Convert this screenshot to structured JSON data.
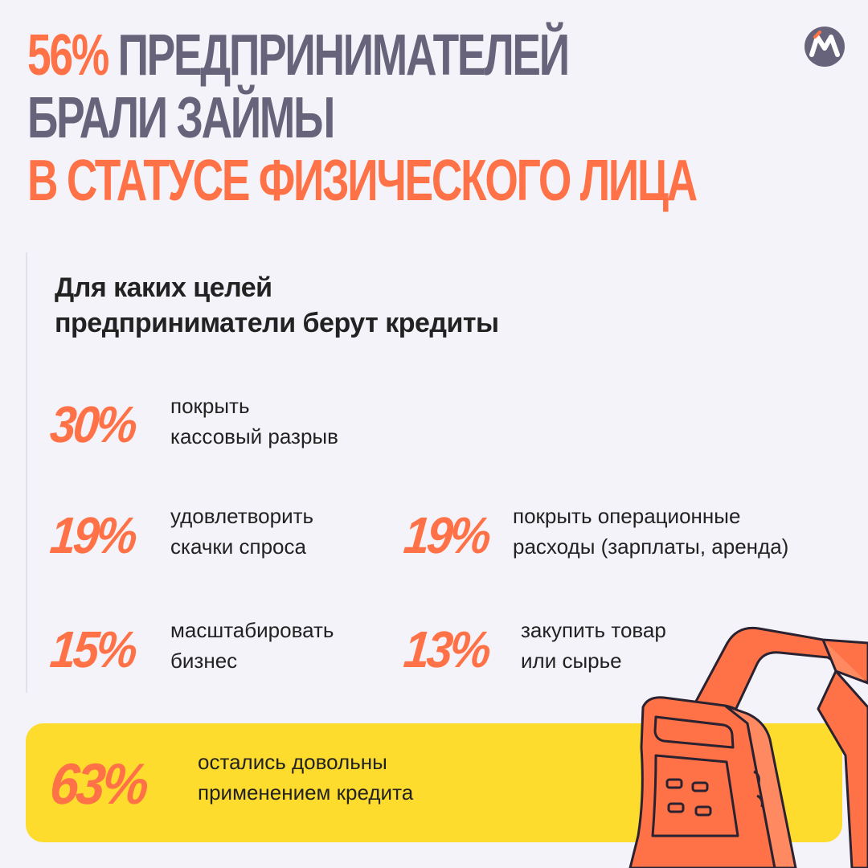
{
  "headline": {
    "line1_highlight": "56%",
    "line1_rest": " ПРЕДПРИНИМАТЕЛЕЙ",
    "line2": "БРАЛИ ЗАЙМЫ",
    "line3": "В СТАТУСЕ ФИЗИЧЕСКОГО ЛИЦА"
  },
  "logo": {
    "icon": "brand-m-icon"
  },
  "subtitle": {
    "line1": "Для каких целей",
    "line2": "предприниматели берут кредиты"
  },
  "stats": [
    {
      "value": "30%",
      "line1": "покрыть",
      "line2": "кассовый разрыв"
    },
    {
      "value": "19%",
      "line1": "удовлетворить",
      "line2": "скачки спроса"
    },
    {
      "value": "19%",
      "line1": "покрыть операционные",
      "line2": "расходы (зарплаты, аренда)"
    },
    {
      "value": "15%",
      "line1": "масштабировать",
      "line2": "бизнес"
    },
    {
      "value": "13%",
      "line1": "закупить товар",
      "line2": "или сырье"
    }
  ],
  "banner": {
    "value": "63%",
    "line1": "остались довольны",
    "line2": "применением кредита"
  },
  "colors": {
    "accent": "#ff7247",
    "headline_dark": "#67637a",
    "banner": "#fddc2d",
    "background": "#f4f3f9"
  }
}
